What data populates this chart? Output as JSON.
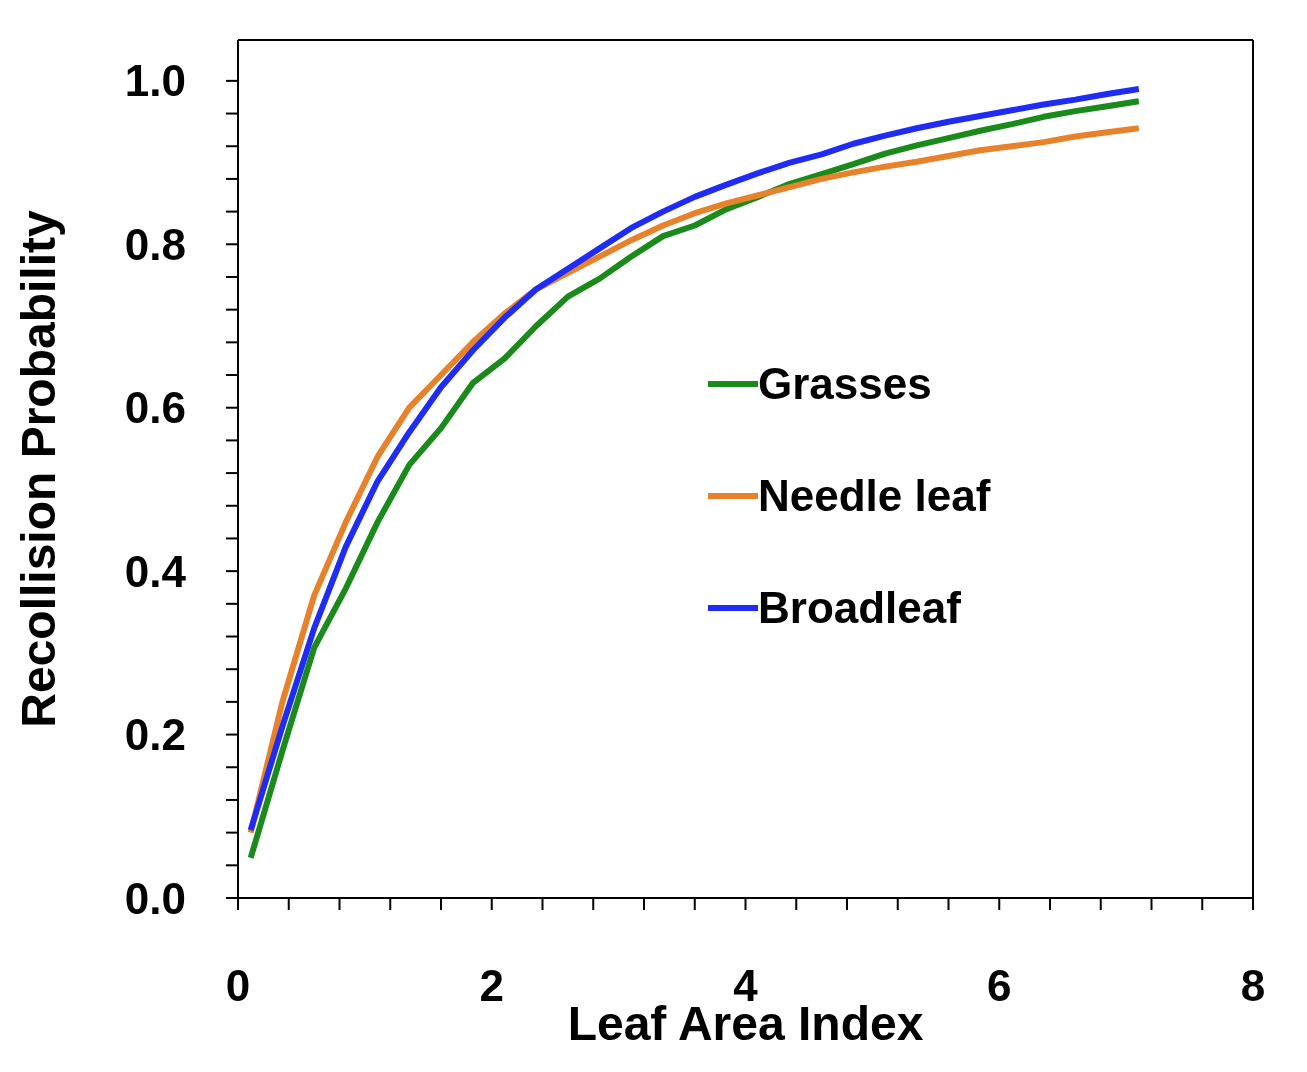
{
  "chart_data": {
    "type": "line",
    "xlabel": "Leaf Area Index",
    "ylabel": "Recollision Probability",
    "x": [
      0.1,
      0.35,
      0.6,
      0.85,
      1.1,
      1.35,
      1.6,
      1.85,
      2.1,
      2.35,
      2.6,
      2.85,
      3.1,
      3.35,
      3.6,
      3.85,
      4.1,
      4.35,
      4.6,
      4.85,
      5.1,
      5.35,
      5.6,
      5.85,
      6.1,
      6.35,
      6.6,
      6.85,
      7.1
    ],
    "series": [
      {
        "name": "Grasses",
        "color": "#1a8a1a",
        "values": [
          0.049,
          0.18,
          0.306,
          0.379,
          0.46,
          0.53,
          0.575,
          0.63,
          0.66,
          0.7,
          0.736,
          0.758,
          0.785,
          0.81,
          0.823,
          0.843,
          0.858,
          0.874,
          0.886,
          0.898,
          0.911,
          0.921,
          0.93,
          0.939,
          0.947,
          0.956,
          0.963,
          0.969,
          0.975
        ]
      },
      {
        "name": "Needle leaf",
        "color": "#e8822a",
        "values": [
          0.08,
          0.24,
          0.37,
          0.46,
          0.54,
          0.6,
          0.64,
          0.68,
          0.715,
          0.745,
          0.765,
          0.785,
          0.805,
          0.823,
          0.838,
          0.85,
          0.86,
          0.87,
          0.88,
          0.888,
          0.895,
          0.901,
          0.908,
          0.915,
          0.92,
          0.925,
          0.932,
          0.937,
          0.942
        ]
      },
      {
        "name": "Broadleaf",
        "color": "#1f2cf5",
        "values": [
          0.083,
          0.21,
          0.33,
          0.43,
          0.51,
          0.57,
          0.625,
          0.67,
          0.71,
          0.745,
          0.77,
          0.795,
          0.82,
          0.84,
          0.858,
          0.873,
          0.887,
          0.9,
          0.91,
          0.923,
          0.933,
          0.942,
          0.95,
          0.957,
          0.964,
          0.971,
          0.977,
          0.984,
          0.99
        ]
      }
    ],
    "xlim": [
      0,
      8
    ],
    "xticks": [
      0,
      {
        "value": 0.4,
        "label": null
      },
      {
        "value": 0.8,
        "label": null
      },
      {
        "value": 1.2,
        "label": null
      },
      {
        "value": 1.6,
        "label": null
      },
      2,
      {
        "value": 2.4,
        "label": null
      },
      {
        "value": 2.8,
        "label": null
      },
      {
        "value": 3.2,
        "label": null
      },
      {
        "value": 3.6,
        "label": null
      },
      4,
      {
        "value": 4.4,
        "label": null
      },
      {
        "value": 4.8,
        "label": null
      },
      {
        "value": 5.2,
        "label": null
      },
      {
        "value": 5.6,
        "label": null
      },
      6,
      {
        "value": 6.4,
        "label": null
      },
      {
        "value": 6.8,
        "label": null
      },
      {
        "value": 7.2,
        "label": null
      },
      {
        "value": 7.6,
        "label": null
      },
      8
    ],
    "ylim": [
      0,
      1.05
    ],
    "yticks": [
      {
        "value": 0,
        "label": "0.0"
      },
      {
        "value": 0.04,
        "label": null
      },
      {
        "value": 0.08,
        "label": null
      },
      {
        "value": 0.12,
        "label": null
      },
      {
        "value": 0.16,
        "label": null
      },
      {
        "value": 0.2,
        "label": "0.2"
      },
      {
        "value": 0.24,
        "label": null
      },
      {
        "value": 0.28,
        "label": null
      },
      {
        "value": 0.32,
        "label": null
      },
      {
        "value": 0.36,
        "label": null
      },
      {
        "value": 0.4,
        "label": "0.4"
      },
      {
        "value": 0.44,
        "label": null
      },
      {
        "value": 0.48,
        "label": null
      },
      {
        "value": 0.52,
        "label": null
      },
      {
        "value": 0.56,
        "label": null
      },
      {
        "value": 0.6,
        "label": "0.6"
      },
      {
        "value": 0.64,
        "label": null
      },
      {
        "value": 0.68,
        "label": null
      },
      {
        "value": 0.72,
        "label": null
      },
      {
        "value": 0.76,
        "label": null
      },
      {
        "value": 0.8,
        "label": "0.8"
      },
      {
        "value": 0.84,
        "label": null
      },
      {
        "value": 0.88,
        "label": null
      },
      {
        "value": 0.92,
        "label": null
      },
      {
        "value": 0.96,
        "label": null
      },
      {
        "value": 1,
        "label": "1.0"
      }
    ],
    "legend": "right",
    "marker": "none",
    "line_style": "solid"
  }
}
